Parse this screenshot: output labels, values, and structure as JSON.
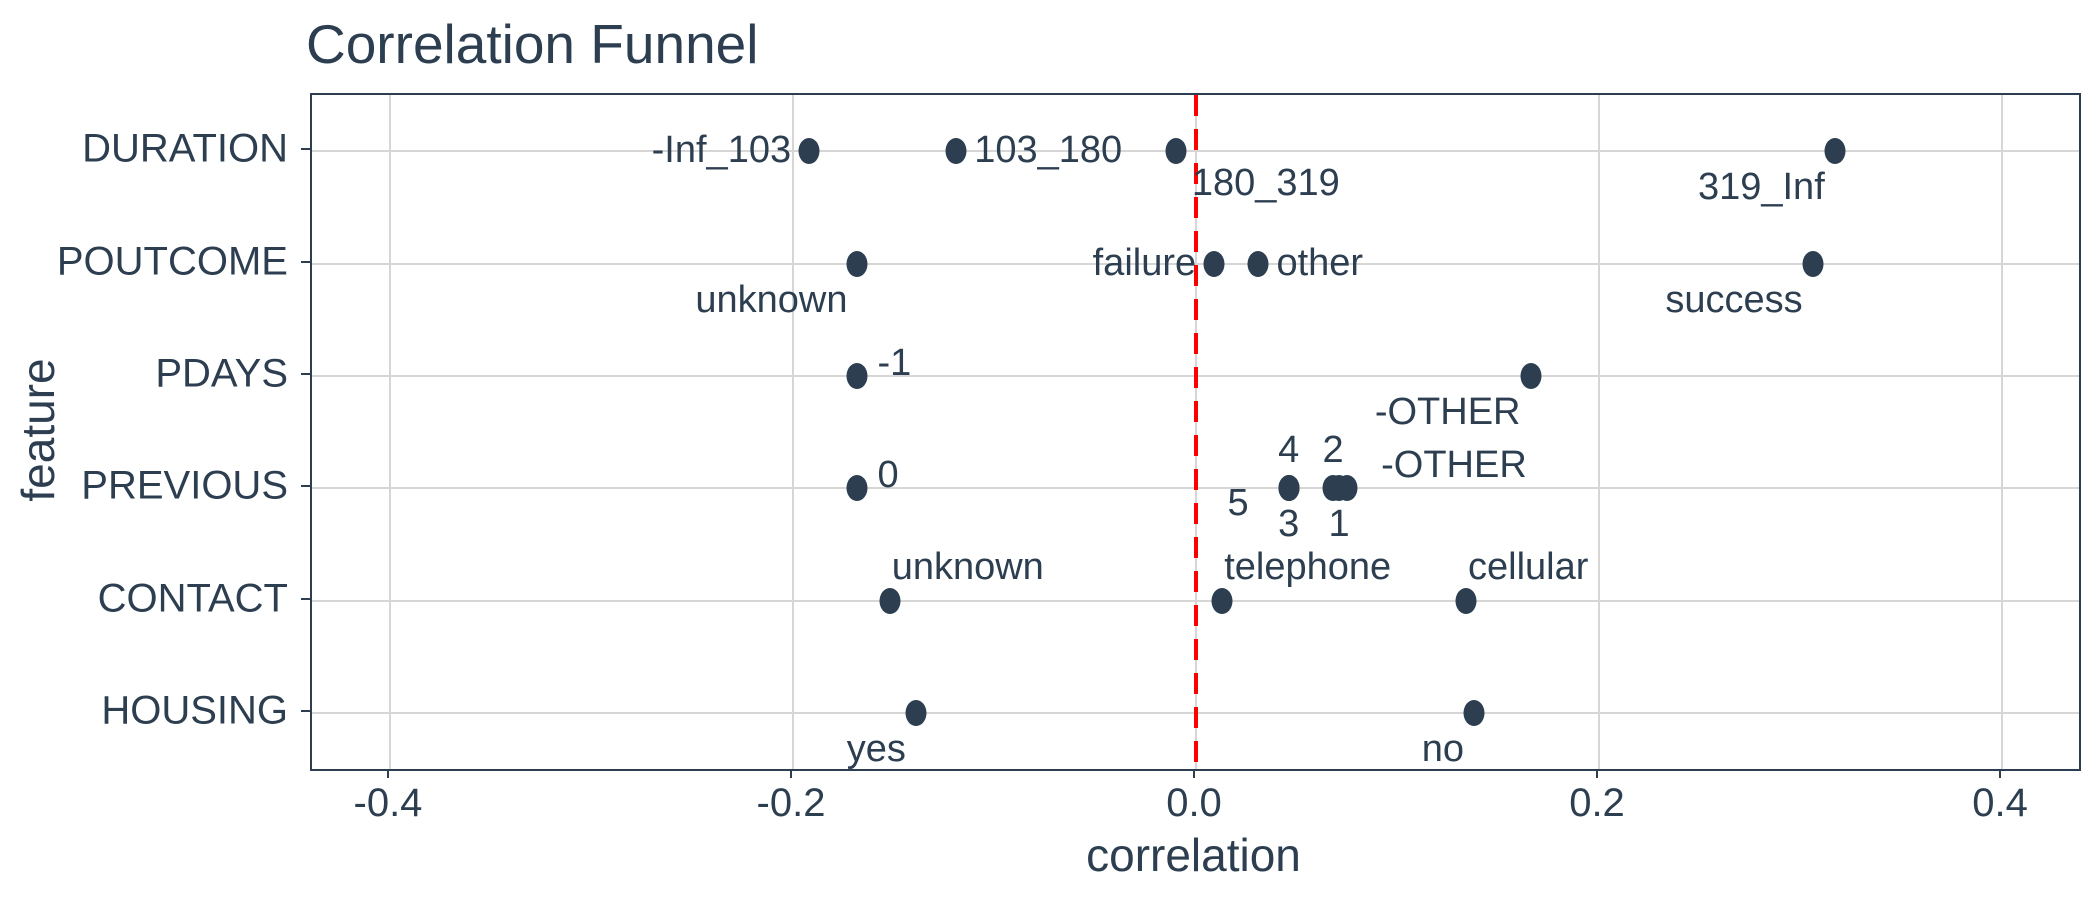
{
  "chart_data": {
    "type": "scatter",
    "title": "Correlation Funnel",
    "xlabel": "correlation",
    "ylabel": "feature",
    "features": [
      "DURATION",
      "POUTCOME",
      "PDAYS",
      "PREVIOUS",
      "CONTACT",
      "HOUSING"
    ],
    "x_ticks": [
      -0.4,
      -0.2,
      0.0,
      0.2,
      0.4
    ],
    "x_tick_labels": [
      "-0.4",
      "-0.2",
      "0.0",
      "0.2",
      "0.4"
    ],
    "xlim": [
      -0.4387,
      0.4382
    ],
    "grid": "major-only",
    "legend": "none",
    "zero_line": {
      "x": 0.0,
      "style": "dashed"
    },
    "points": [
      {
        "feature": "DURATION",
        "bin": "-Inf_103",
        "correlation": -0.192,
        "label_side": "left"
      },
      {
        "feature": "DURATION",
        "bin": "103_180",
        "correlation": -0.119,
        "label_side": "right"
      },
      {
        "feature": "DURATION",
        "bin": "180_319",
        "correlation": -0.01,
        "label_side": "below-right"
      },
      {
        "feature": "DURATION",
        "bin": "319_Inf",
        "correlation": 0.317,
        "label_side": "below-left"
      },
      {
        "feature": "POUTCOME",
        "bin": "unknown",
        "correlation": -0.168,
        "label_side": "below-left"
      },
      {
        "feature": "POUTCOME",
        "bin": "failure",
        "correlation": 0.009,
        "label_side": "left"
      },
      {
        "feature": "POUTCOME",
        "bin": "other",
        "correlation": 0.031,
        "label_side": "right"
      },
      {
        "feature": "POUTCOME",
        "bin": "success",
        "correlation": 0.306,
        "label_side": "below-left"
      },
      {
        "feature": "PDAYS",
        "bin": "-1",
        "correlation": -0.168,
        "label_side": "right-raised"
      },
      {
        "feature": "PDAYS",
        "bin": "-OTHER",
        "correlation": 0.166,
        "label_side": "below-left"
      },
      {
        "feature": "PREVIOUS",
        "bin": "0",
        "correlation": -0.168,
        "label_side": "right-raised"
      },
      {
        "feature": "PREVIOUS",
        "bin": "5",
        "correlation": 0.046,
        "label_side": "left-lowered"
      },
      {
        "feature": "PREVIOUS",
        "bin": "4",
        "correlation": 0.046,
        "label_side": "above"
      },
      {
        "feature": "PREVIOUS",
        "bin": "3",
        "correlation": 0.046,
        "label_side": "below"
      },
      {
        "feature": "PREVIOUS",
        "bin": "2",
        "correlation": 0.068,
        "label_side": "above"
      },
      {
        "feature": "PREVIOUS",
        "bin": "1",
        "correlation": 0.071,
        "label_side": "below"
      },
      {
        "feature": "PREVIOUS",
        "bin": "-OTHER",
        "correlation": 0.075,
        "label_side": "right-far-raised"
      },
      {
        "feature": "CONTACT",
        "bin": "unknown",
        "correlation": -0.152,
        "label_side": "above-right"
      },
      {
        "feature": "CONTACT",
        "bin": "telephone",
        "correlation": 0.013,
        "label_side": "above-right"
      },
      {
        "feature": "CONTACT",
        "bin": "cellular",
        "correlation": 0.134,
        "label_side": "above-right"
      },
      {
        "feature": "HOUSING",
        "bin": "yes",
        "correlation": -0.139,
        "label_side": "below-left"
      },
      {
        "feature": "HOUSING",
        "bin": "no",
        "correlation": 0.138,
        "label_side": "below-left"
      }
    ],
    "colors": {
      "point": "#2C3E50",
      "text": "#2C3E50",
      "grid": "#D6D6D6",
      "panel_border": "#2C3E50",
      "tick": "#2C3E50",
      "zero_line": "#FF0000",
      "background": "#FFFFFF"
    }
  }
}
